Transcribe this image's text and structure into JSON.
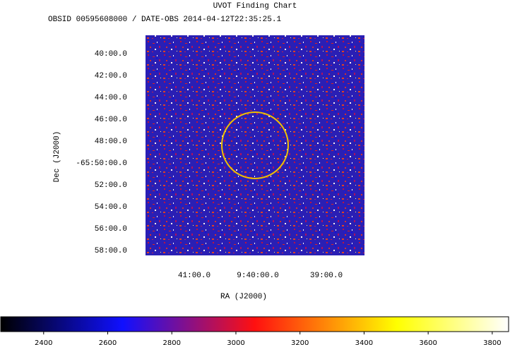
{
  "chart_data": {
    "type": "image",
    "title": "UVOT Finding Chart",
    "subtitle": "OBSID 00595608000 / DATE-OBS 2014-04-12T22:35:25.1",
    "x_label": "RA (J2000)",
    "y_label": "Dec (J2000)",
    "x_tick_labels": [
      "41:00.0",
      "9:40:00.0",
      "39:00.0"
    ],
    "y_tick_labels": [
      "40:00.0",
      "42:00.0",
      "44:00.0",
      "46:00.0",
      "48:00.0",
      "-65:50:00.0",
      "52:00.0",
      "54:00.0",
      "56:00.0",
      "58:00.0"
    ],
    "colorbar": {
      "lim": [
        2266,
        3851
      ],
      "ticks": [
        2400,
        2600,
        2800,
        3000,
        3200,
        3400,
        3600,
        3800
      ]
    }
  }
}
